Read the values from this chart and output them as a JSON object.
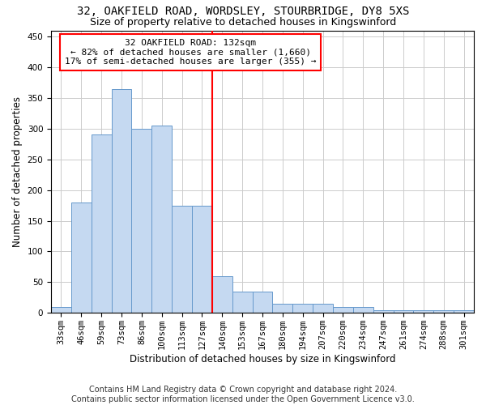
{
  "title": "32, OAKFIELD ROAD, WORDSLEY, STOURBRIDGE, DY8 5XS",
  "subtitle": "Size of property relative to detached houses in Kingswinford",
  "xlabel": "Distribution of detached houses by size in Kingswinford",
  "ylabel": "Number of detached properties",
  "footer_line1": "Contains HM Land Registry data © Crown copyright and database right 2024.",
  "footer_line2": "Contains public sector information licensed under the Open Government Licence v3.0.",
  "bin_labels": [
    "33sqm",
    "46sqm",
    "59sqm",
    "73sqm",
    "86sqm",
    "100sqm",
    "113sqm",
    "127sqm",
    "140sqm",
    "153sqm",
    "167sqm",
    "180sqm",
    "194sqm",
    "207sqm",
    "220sqm",
    "234sqm",
    "247sqm",
    "261sqm",
    "274sqm",
    "288sqm",
    "301sqm"
  ],
  "bar_heights": [
    10,
    180,
    290,
    365,
    300,
    305,
    175,
    175,
    60,
    35,
    35,
    15,
    15,
    15,
    10,
    10,
    5,
    5,
    5,
    5,
    5
  ],
  "bar_color": "#c5d9f1",
  "bar_edge_color": "#6699cc",
  "property_label": "32 OAKFIELD ROAD: 132sqm",
  "annotation_line1": "← 82% of detached houses are smaller (1,660)",
  "annotation_line2": "17% of semi-detached houses are larger (355) →",
  "annotation_box_color": "white",
  "annotation_box_edge_color": "red",
  "vline_color": "red",
  "vline_x": 7.5,
  "ylim": [
    0,
    460
  ],
  "yticks": [
    0,
    50,
    100,
    150,
    200,
    250,
    300,
    350,
    400,
    450
  ],
  "grid_color": "#cccccc",
  "background_color": "white",
  "title_fontsize": 10,
  "subtitle_fontsize": 9,
  "axis_label_fontsize": 8.5,
  "tick_fontsize": 7.5,
  "footer_fontsize": 7,
  "annot_fontsize": 8
}
